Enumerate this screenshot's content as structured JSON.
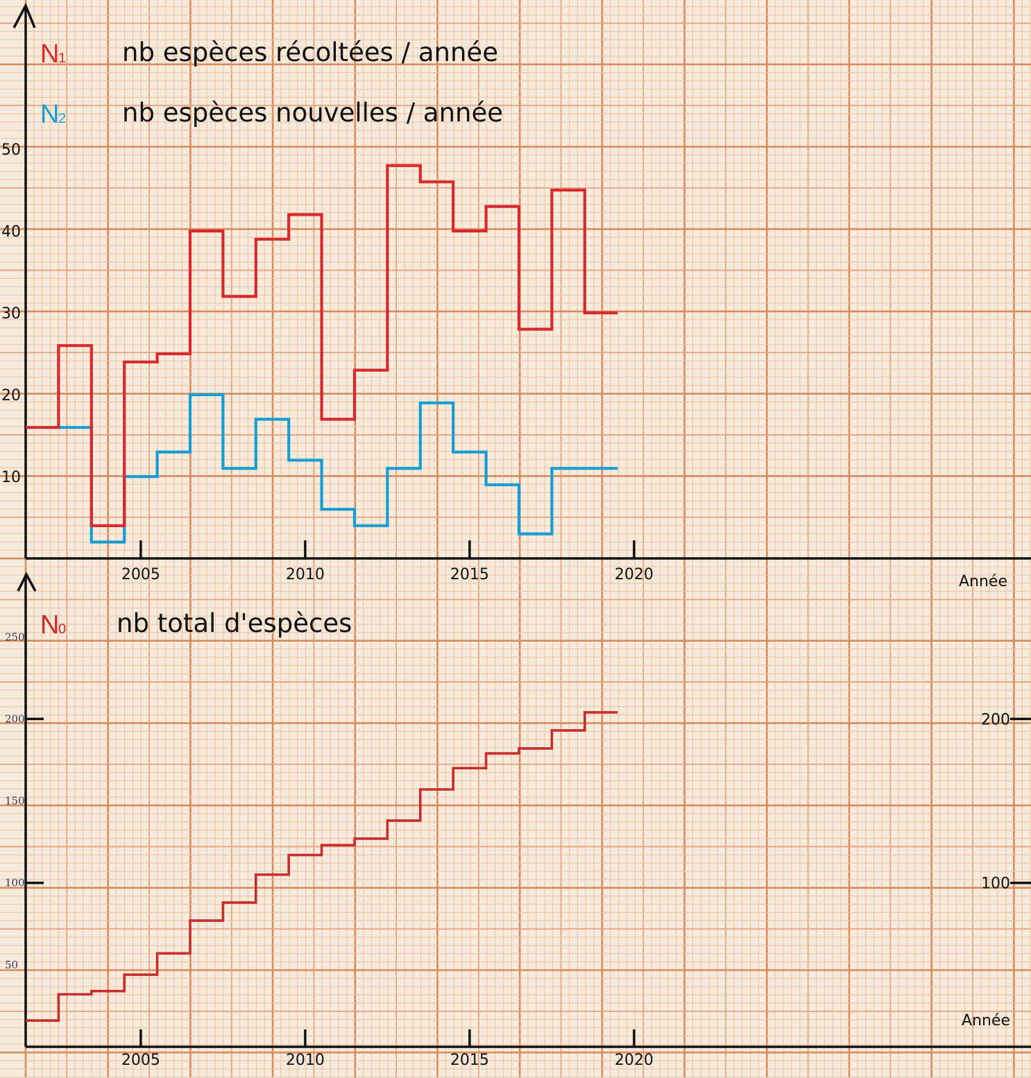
{
  "colors": {
    "background": "#f6eadc",
    "grid_major": "#d98b5c",
    "grid_mid": "#e3a47c",
    "grid_minor": "#ebc4a4",
    "n1": "#d62a2e",
    "n2": "#199dd1",
    "n0": "#c92c2c",
    "axis": "#111111"
  },
  "chart_data": [
    {
      "type": "line",
      "step": true,
      "x": [
        2002,
        2003,
        2004,
        2005,
        2006,
        2007,
        2008,
        2009,
        2010,
        2011,
        2012,
        2013,
        2014,
        2015,
        2016,
        2017,
        2018,
        2019
      ],
      "series": [
        {
          "key": "n1",
          "name": "nb espèces récoltées / année",
          "symbol": "N",
          "subscript": "1",
          "values": [
            16,
            26,
            4,
            24,
            25,
            40,
            32,
            39,
            42,
            17,
            23,
            48,
            46,
            40,
            43,
            28,
            45,
            30
          ]
        },
        {
          "key": "n2",
          "name": "nb espèces nouvelles / année",
          "symbol": "N",
          "subscript": "2",
          "values": [
            null,
            16,
            2,
            10,
            13,
            20,
            11,
            17,
            12,
            6,
            4,
            11,
            19,
            13,
            9,
            3,
            11,
            11
          ]
        }
      ],
      "xlabel": "Année",
      "ylabel": "",
      "ylim": [
        0,
        60
      ],
      "xlim": [
        2001.5,
        2032
      ],
      "xticks": [
        "2005",
        "2010",
        "2015",
        "2020"
      ],
      "yticks": [
        "10",
        "20",
        "30",
        "40",
        "50"
      ],
      "grid": true
    },
    {
      "type": "line",
      "step": true,
      "x": [
        2002,
        2003,
        2004,
        2005,
        2006,
        2007,
        2008,
        2009,
        2010,
        2011,
        2012,
        2013,
        2014,
        2015,
        2016,
        2017,
        2018,
        2019
      ],
      "series": [
        {
          "key": "n0",
          "name": "nb total d'espèces",
          "symbol": "N",
          "subscript": "0",
          "values": [
            16,
            32,
            34,
            44,
            57,
            77,
            88,
            105,
            117,
            123,
            127,
            138,
            157,
            170,
            179,
            182,
            193,
            204
          ]
        }
      ],
      "xlabel": "Année",
      "ylabel": "",
      "ylim": [
        0,
        300
      ],
      "xlim": [
        2001.5,
        2032
      ],
      "xticks": [
        "2005",
        "2010",
        "2015",
        "2020"
      ],
      "yticks_left": [
        "50",
        "100",
        "150",
        "200",
        "250"
      ],
      "yticks_right": [
        "100",
        "200"
      ],
      "grid": true
    }
  ]
}
